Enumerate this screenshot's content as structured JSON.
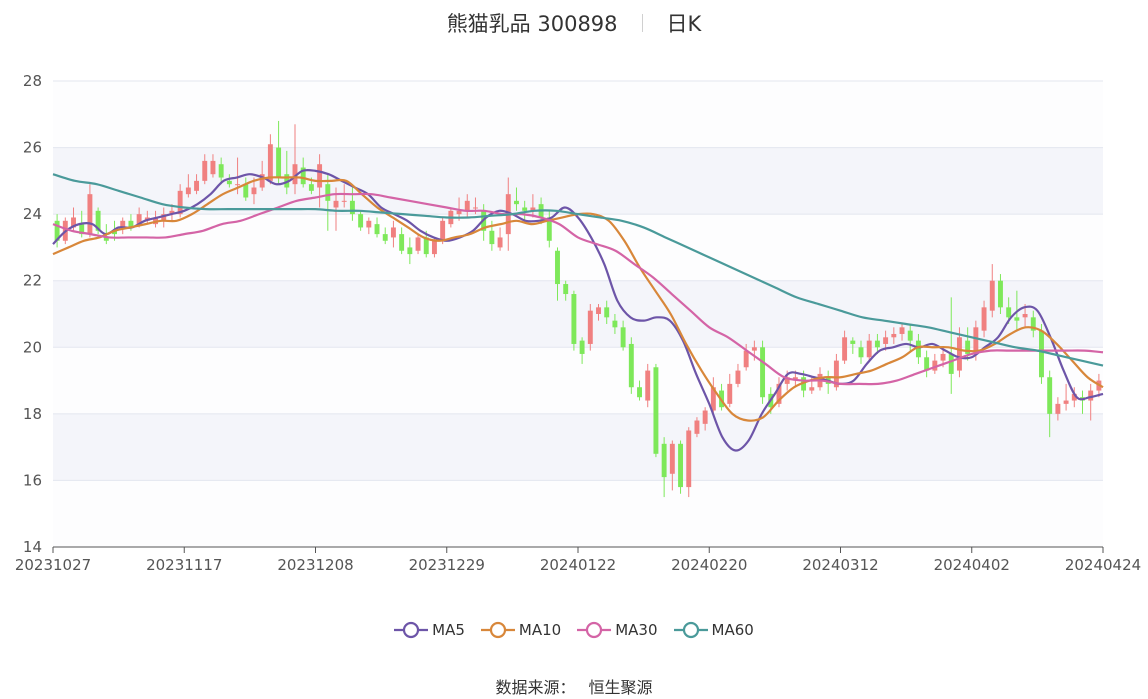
{
  "header": {
    "stock": "熊猫乳品 300898",
    "period": "日K"
  },
  "source": {
    "label": "数据来源：",
    "name": "恒生聚源"
  },
  "chart_data": {
    "type": "candlestick",
    "title": "熊猫乳品 300898",
    "subtitle": "日K",
    "ylim": [
      14,
      28
    ],
    "y_ticks": [
      14,
      16,
      18,
      20,
      22,
      24,
      26,
      28
    ],
    "x_tick_labels": [
      "20231027",
      "20231117",
      "20231208",
      "20231229",
      "20240122",
      "20240220",
      "20240312",
      "20240402",
      "20240424"
    ],
    "up_color": "#f08080",
    "down_color": "#7ee85a",
    "candles": [
      [
        23.8,
        23.2,
        24.0,
        23.0
      ],
      [
        23.2,
        23.8,
        23.9,
        23.1
      ],
      [
        23.6,
        23.9,
        24.2,
        23.5
      ],
      [
        23.7,
        23.4,
        24.1,
        23.3
      ],
      [
        23.4,
        24.6,
        24.9,
        23.3
      ],
      [
        24.1,
        23.5,
        24.2,
        23.4
      ],
      [
        23.3,
        23.2,
        23.7,
        23.1
      ],
      [
        23.5,
        23.4,
        23.8,
        23.2
      ],
      [
        23.6,
        23.8,
        23.9,
        23.4
      ],
      [
        23.8,
        23.6,
        24.0,
        23.5
      ],
      [
        23.7,
        24.0,
        24.2,
        23.6
      ],
      [
        23.8,
        23.9,
        24.1,
        23.7
      ],
      [
        23.7,
        23.9,
        24.1,
        23.6
      ],
      [
        23.8,
        24.0,
        24.2,
        23.6
      ],
      [
        24.0,
        24.1,
        24.3,
        23.8
      ],
      [
        24.0,
        24.7,
        24.9,
        23.9
      ],
      [
        24.6,
        24.8,
        25.2,
        24.5
      ],
      [
        24.7,
        25.0,
        25.2,
        24.6
      ],
      [
        25.0,
        25.6,
        25.8,
        24.9
      ],
      [
        25.2,
        25.6,
        25.8,
        25.1
      ],
      [
        25.5,
        25.1,
        25.7,
        24.9
      ],
      [
        25.0,
        24.9,
        25.2,
        24.8
      ],
      [
        24.9,
        24.9,
        25.7,
        24.6
      ],
      [
        24.9,
        24.5,
        25.1,
        24.4
      ],
      [
        24.6,
        24.8,
        25.1,
        24.3
      ],
      [
        24.8,
        25.2,
        25.6,
        24.7
      ],
      [
        25.0,
        26.1,
        26.4,
        24.9
      ],
      [
        26.0,
        25.1,
        26.8,
        24.9
      ],
      [
        25.2,
        24.8,
        25.9,
        24.6
      ],
      [
        24.9,
        25.5,
        26.7,
        24.6
      ],
      [
        25.4,
        24.9,
        25.7,
        24.8
      ],
      [
        24.9,
        24.7,
        25.1,
        24.6
      ],
      [
        24.8,
        25.5,
        25.8,
        24.2
      ],
      [
        24.9,
        24.4,
        25.2,
        23.5
      ],
      [
        24.2,
        24.4,
        24.8,
        23.5
      ],
      [
        24.4,
        24.4,
        24.9,
        24.2
      ],
      [
        24.4,
        24.0,
        24.8,
        23.8
      ],
      [
        24.0,
        23.6,
        24.1,
        23.5
      ],
      [
        23.6,
        23.8,
        23.9,
        23.4
      ],
      [
        23.7,
        23.4,
        23.9,
        23.3
      ],
      [
        23.4,
        23.2,
        23.6,
        23.1
      ],
      [
        23.3,
        23.6,
        23.8,
        23.0
      ],
      [
        23.4,
        22.9,
        23.6,
        22.8
      ],
      [
        23.0,
        22.8,
        23.3,
        22.5
      ],
      [
        22.9,
        23.3,
        23.4,
        22.8
      ],
      [
        23.3,
        22.8,
        23.5,
        22.7
      ],
      [
        22.8,
        23.2,
        23.3,
        22.7
      ],
      [
        23.2,
        23.8,
        23.9,
        23.1
      ],
      [
        23.7,
        24.1,
        24.2,
        23.6
      ],
      [
        24.0,
        24.1,
        24.5,
        23.8
      ],
      [
        24.1,
        24.4,
        24.6,
        23.9
      ],
      [
        24.2,
        24.2,
        24.5,
        24.0
      ],
      [
        24.1,
        23.5,
        24.3,
        23.2
      ],
      [
        23.5,
        23.1,
        23.8,
        22.9
      ],
      [
        23.0,
        23.3,
        23.6,
        22.9
      ],
      [
        23.4,
        24.6,
        25.1,
        22.9
      ],
      [
        24.4,
        24.3,
        24.8,
        24.1
      ],
      [
        24.2,
        24.1,
        24.4,
        23.8
      ],
      [
        24.1,
        24.2,
        24.6,
        23.9
      ],
      [
        24.3,
        23.9,
        24.5,
        23.7
      ],
      [
        23.9,
        23.2,
        24.1,
        23.0
      ],
      [
        22.9,
        21.9,
        23.0,
        21.4
      ],
      [
        21.9,
        21.6,
        22.0,
        21.4
      ],
      [
        21.6,
        20.1,
        21.7,
        19.9
      ],
      [
        20.2,
        19.8,
        20.3,
        19.5
      ],
      [
        20.1,
        21.1,
        21.3,
        19.9
      ],
      [
        21.0,
        21.2,
        21.3,
        20.8
      ],
      [
        21.2,
        20.9,
        21.4,
        20.7
      ],
      [
        20.8,
        20.6,
        21.0,
        20.4
      ],
      [
        20.6,
        20.0,
        20.8,
        19.9
      ],
      [
        20.1,
        18.8,
        20.3,
        18.6
      ],
      [
        18.8,
        18.5,
        19.0,
        18.4
      ],
      [
        18.4,
        19.3,
        19.5,
        18.2
      ],
      [
        19.4,
        16.8,
        19.5,
        16.7
      ],
      [
        17.1,
        16.1,
        17.3,
        15.5
      ],
      [
        16.2,
        17.1,
        17.2,
        15.7
      ],
      [
        17.1,
        15.8,
        17.2,
        15.6
      ],
      [
        15.8,
        17.5,
        17.6,
        15.5
      ],
      [
        17.4,
        17.8,
        17.9,
        17.3
      ],
      [
        17.7,
        18.1,
        18.2,
        17.5
      ],
      [
        18.1,
        18.8,
        19.1,
        18.0
      ],
      [
        18.7,
        18.2,
        18.9,
        18.1
      ],
      [
        18.3,
        18.9,
        19.2,
        18.2
      ],
      [
        18.9,
        19.3,
        19.5,
        18.8
      ],
      [
        19.4,
        19.9,
        20.1,
        19.3
      ],
      [
        19.9,
        20.0,
        20.2,
        19.6
      ],
      [
        20.0,
        18.5,
        20.2,
        18.3
      ],
      [
        18.6,
        18.2,
        18.8,
        18.0
      ],
      [
        18.3,
        18.9,
        19.1,
        18.2
      ],
      [
        18.9,
        19.1,
        19.3,
        18.7
      ],
      [
        19.0,
        19.1,
        19.3,
        18.8
      ],
      [
        19.1,
        18.7,
        19.3,
        18.5
      ],
      [
        18.7,
        18.8,
        19.1,
        18.6
      ],
      [
        18.8,
        19.2,
        19.4,
        18.7
      ],
      [
        19.1,
        18.9,
        19.3,
        18.6
      ],
      [
        18.8,
        19.6,
        19.8,
        18.7
      ],
      [
        19.6,
        20.3,
        20.5,
        19.5
      ],
      [
        20.2,
        20.1,
        20.3,
        19.8
      ],
      [
        20.0,
        19.7,
        20.2,
        19.5
      ],
      [
        19.7,
        20.2,
        20.4,
        19.6
      ],
      [
        20.2,
        20.0,
        20.4,
        19.8
      ],
      [
        20.1,
        20.3,
        20.5,
        19.9
      ],
      [
        20.3,
        20.4,
        20.6,
        20.1
      ],
      [
        20.4,
        20.6,
        20.7,
        20.2
      ],
      [
        20.5,
        20.2,
        20.7,
        19.9
      ],
      [
        20.2,
        19.7,
        20.4,
        19.5
      ],
      [
        19.7,
        19.3,
        19.9,
        19.1
      ],
      [
        19.3,
        19.6,
        19.8,
        19.2
      ],
      [
        19.6,
        19.8,
        20.0,
        19.4
      ],
      [
        19.8,
        19.2,
        21.5,
        18.6
      ],
      [
        19.3,
        20.3,
        20.6,
        19.1
      ],
      [
        20.2,
        19.8,
        20.6,
        19.6
      ],
      [
        19.8,
        20.6,
        20.8,
        19.6
      ],
      [
        20.5,
        21.2,
        21.4,
        20.3
      ],
      [
        21.1,
        22.0,
        22.5,
        20.9
      ],
      [
        22.0,
        21.2,
        22.2,
        21.0
      ],
      [
        21.2,
        20.9,
        21.5,
        20.7
      ],
      [
        20.9,
        20.8,
        21.7,
        20.5
      ],
      [
        20.9,
        21.0,
        21.3,
        20.6
      ],
      [
        20.9,
        20.5,
        21.1,
        20.3
      ],
      [
        20.5,
        19.1,
        20.7,
        18.9
      ],
      [
        19.1,
        18.0,
        19.3,
        17.3
      ],
      [
        18.0,
        18.3,
        18.5,
        17.8
      ],
      [
        18.3,
        18.4,
        18.9,
        18.1
      ],
      [
        18.4,
        18.6,
        18.8,
        18.2
      ],
      [
        18.5,
        18.4,
        18.7,
        18.0
      ],
      [
        18.4,
        18.7,
        18.9,
        17.8
      ],
      [
        18.7,
        19.0,
        19.2,
        18.5
      ]
    ],
    "series": [
      {
        "name": "MA5",
        "color": "#6d55a8",
        "values": [
          23.1,
          23.5,
          23.7,
          23.7,
          23.4,
          23.6,
          23.6,
          23.8,
          23.9,
          24.0,
          24.1,
          24.3,
          24.6,
          25.0,
          25.1,
          25.2,
          25.1,
          24.9,
          25.0,
          25.3,
          25.3,
          25.2,
          25.0,
          24.8,
          24.6,
          24.2,
          24.0,
          23.8,
          23.5,
          23.3,
          23.2,
          23.3,
          23.5,
          23.9,
          24.1,
          24.0,
          23.8,
          23.8,
          23.9,
          24.2,
          23.9,
          23.3,
          22.5,
          21.4,
          20.9,
          20.8,
          20.9,
          20.8,
          20.2,
          19.2,
          18.3,
          17.3,
          16.9,
          17.2,
          18.0,
          18.6,
          19.2,
          19.2,
          19.1,
          19.0,
          18.9,
          19.0,
          19.5,
          19.9,
          20.0,
          20.1,
          20.0,
          20.1,
          19.9,
          19.7,
          19.7,
          20.0,
          20.3,
          20.9,
          21.2,
          21.1,
          20.3,
          19.3,
          18.5,
          18.5,
          18.6
        ]
      },
      {
        "name": "MA10",
        "color": "#d8873a",
        "values": [
          22.8,
          23.0,
          23.2,
          23.3,
          23.5,
          23.6,
          23.7,
          23.8,
          23.8,
          24.0,
          24.3,
          24.6,
          24.8,
          25.0,
          25.1,
          25.1,
          25.1,
          25.0,
          25.0,
          25.0,
          24.6,
          24.2,
          23.9,
          23.6,
          23.3,
          23.2,
          23.3,
          23.4,
          23.6,
          23.7,
          23.8,
          23.7,
          23.8,
          23.9,
          24.0,
          24.0,
          23.8,
          23.2,
          22.4,
          21.7,
          21.0,
          20.1,
          19.3,
          18.6,
          18.0,
          17.8,
          17.9,
          18.4,
          18.8,
          19.0,
          19.1,
          19.1,
          19.2,
          19.3,
          19.5,
          19.7,
          20.0,
          20.0,
          20.0,
          19.9,
          19.9,
          20.1,
          20.4,
          20.6,
          20.5,
          20.1,
          19.6,
          19.1,
          18.8
        ]
      },
      {
        "name": "MA30",
        "color": "#d464a6",
        "values": [
          23.7,
          23.5,
          23.4,
          23.3,
          23.3,
          23.3,
          23.3,
          23.4,
          23.5,
          23.7,
          23.8,
          24.0,
          24.2,
          24.4,
          24.5,
          24.6,
          24.6,
          24.6,
          24.5,
          24.4,
          24.3,
          24.2,
          24.1,
          24.1,
          24.0,
          24.0,
          23.9,
          23.7,
          23.3,
          23.1,
          22.9,
          22.5,
          22.1,
          21.6,
          21.1,
          20.6,
          20.3,
          19.9,
          19.5,
          19.1,
          19.0,
          19.0,
          18.9,
          18.9,
          18.9,
          19.0,
          19.2,
          19.4,
          19.6,
          19.8,
          19.9,
          19.9,
          19.9,
          19.9,
          19.9,
          19.9,
          19.85
        ]
      },
      {
        "name": "MA60",
        "color": "#4a9a9a",
        "values": [
          25.2,
          25.0,
          24.9,
          24.7,
          24.5,
          24.3,
          24.2,
          24.15,
          24.15,
          24.15,
          24.15,
          24.15,
          24.15,
          24.1,
          24.1,
          24.05,
          24.0,
          23.95,
          23.9,
          23.9,
          23.95,
          24.0,
          24.1,
          24.1,
          24.0,
          23.9,
          23.8,
          23.6,
          23.3,
          23.0,
          22.7,
          22.4,
          22.1,
          21.8,
          21.5,
          21.3,
          21.1,
          20.9,
          20.8,
          20.7,
          20.6,
          20.45,
          20.3,
          20.15,
          20.0,
          19.9,
          19.75,
          19.6,
          19.45
        ]
      }
    ],
    "legend": [
      "MA5",
      "MA10",
      "MA30",
      "MA60"
    ],
    "legend_position": "bottom",
    "grid": true
  }
}
